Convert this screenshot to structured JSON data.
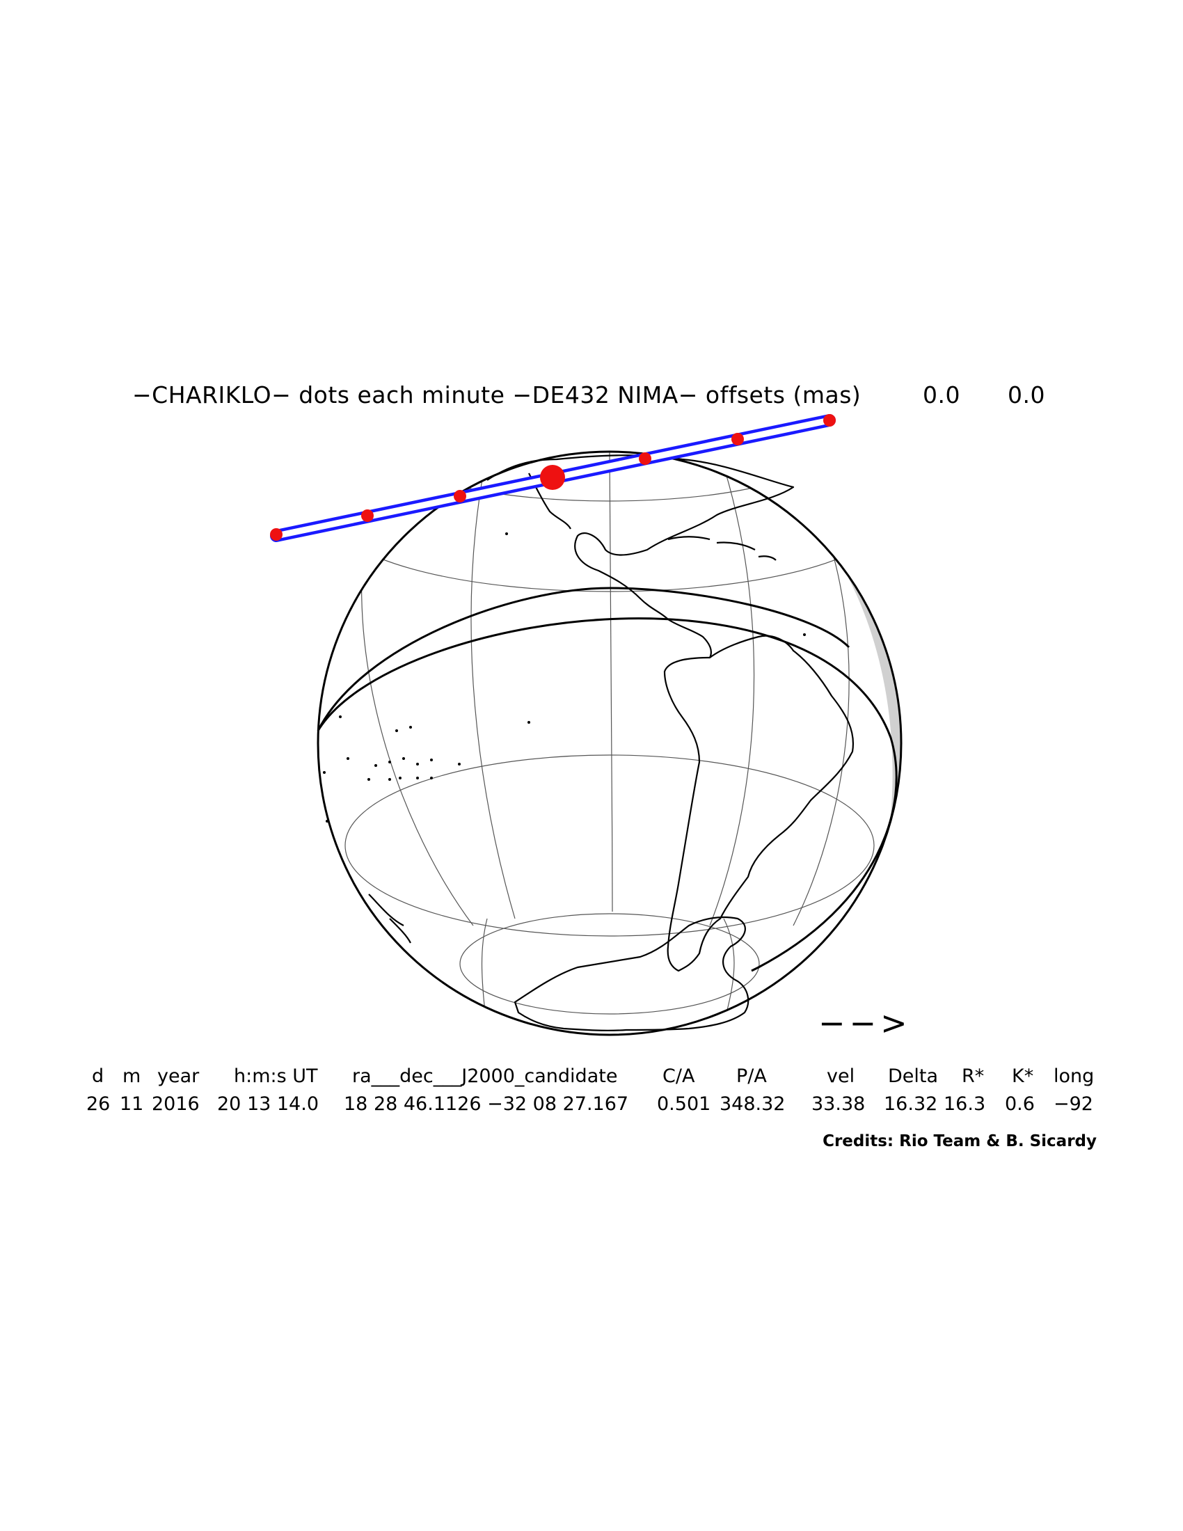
{
  "title": {
    "main": "−CHARIKLO− dots each minute −DE432 NIMA− offsets (mas)",
    "offset_x": "0.0",
    "offset_y": "0.0"
  },
  "map": {
    "direction_arrow": "−−>",
    "colors": {
      "track": "#1a1aff",
      "dots": "#ee1111",
      "night_shade": "#d0d0d0",
      "coastline": "#000000",
      "graticule": "#555555"
    }
  },
  "table": {
    "headers": [
      "d",
      "m",
      "year",
      "h:m:s UT",
      "ra___dec___J2000_candidate",
      "C/A",
      "P/A",
      "vel",
      "Delta",
      "R*",
      "K*",
      "long"
    ],
    "values": [
      "26",
      "11",
      "2016",
      "20 13 14.0",
      "18 28 46.1126 −32 08 27.167",
      "0.501",
      "348.32",
      "33.38",
      "16.32",
      "16.3",
      "0.6",
      "−92"
    ]
  },
  "credits": "Credits: Rio Team & B. Sicardy"
}
